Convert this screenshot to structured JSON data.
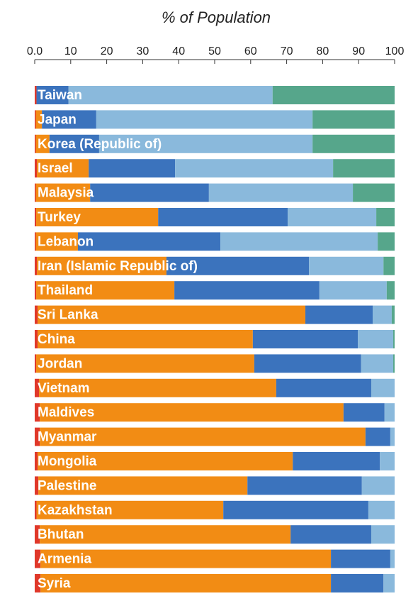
{
  "chart_data": {
    "type": "stacked-barh",
    "title": "% of Population",
    "categories": [
      "Taiwan",
      "Japan",
      "Korea (Republic of)",
      "Israel",
      "Malaysia",
      "Turkey",
      "Lebanon",
      "Iran (Islamic Republic of)",
      "Thailand",
      "Sri Lanka",
      "China",
      "Jordan",
      "Vietnam",
      "Maldives",
      "Myanmar",
      "Mongolia",
      "Palestine",
      "Kazakhstan",
      "Bhutan",
      "Armenia",
      "Syria"
    ],
    "series": [
      {
        "color": "#e0382a",
        "values": [
          0.5,
          0.3,
          0.3,
          0.6,
          0.3,
          0.4,
          0.3,
          0.6,
          0.4,
          0.8,
          0.8,
          0.4,
          1.2,
          1.4,
          1.4,
          0.8,
          1.0,
          0.5,
          1.4,
          1.6,
          1.6
        ]
      },
      {
        "color": "#f28c14",
        "values": [
          0,
          1.7,
          3.8,
          14.4,
          15.1,
          33.9,
          11.7,
          36.0,
          38.4,
          74.4,
          59.8,
          60.6,
          65.9,
          84.4,
          90.5,
          70.9,
          58.1,
          51.9,
          69.7,
          80.7,
          80.7
        ]
      },
      {
        "color": "#3b73bd",
        "values": [
          8.9,
          15.1,
          13.8,
          24.0,
          33.0,
          36.0,
          39.6,
          39.6,
          40.3,
          18.7,
          29.2,
          29.7,
          26.4,
          11.4,
          6.9,
          24.2,
          31.8,
          40.3,
          22.4,
          16.5,
          14.6
        ]
      },
      {
        "color": "#8ab9dc",
        "values": [
          56.7,
          60.1,
          59.3,
          43.9,
          40.0,
          24.6,
          43.7,
          20.7,
          18.7,
          5.3,
          9.8,
          8.9,
          6.5,
          2.8,
          1.2,
          4.1,
          9.1,
          7.3,
          6.5,
          1.2,
          3.1
        ]
      },
      {
        "color": "#56a68b",
        "values": [
          33.9,
          22.8,
          22.8,
          17.1,
          11.6,
          5.1,
          4.7,
          3.1,
          2.2,
          0.8,
          0.4,
          0.4,
          0,
          0,
          0,
          0,
          0,
          0,
          0,
          0,
          0
        ]
      }
    ],
    "xlim": [
      0,
      100
    ],
    "xticks": [
      {
        "value": 0,
        "label": "0.0"
      },
      10,
      20,
      30,
      40,
      50,
      60,
      70,
      80,
      90,
      100
    ]
  }
}
